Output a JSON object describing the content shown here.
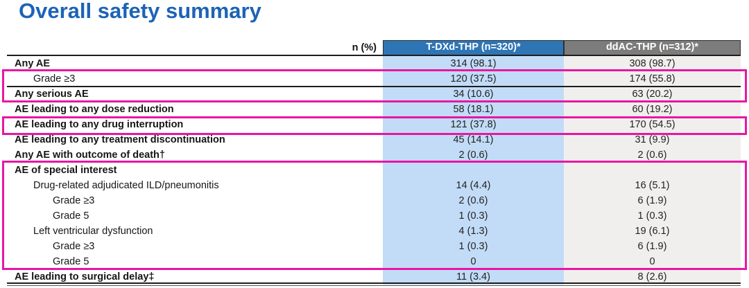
{
  "title": "Overall safety summary",
  "table": {
    "unit_label": "n (%)",
    "columns": [
      {
        "id": "tdxd",
        "label": "T-DXd-THP (n=320)*"
      },
      {
        "id": "ddac",
        "label": "ddAC-THP (n=312)*"
      }
    ],
    "rows": [
      {
        "label": "Any AE",
        "indent": 0,
        "bold": true,
        "values": [
          "314 (98.1)",
          "308 (98.7)"
        ]
      },
      {
        "label": "Grade ≥3",
        "indent": 1,
        "bold": false,
        "values": [
          "120 (37.5)",
          "174 (55.8)"
        ]
      },
      {
        "label": "Any serious AE",
        "indent": 0,
        "bold": true,
        "values": [
          "34 (10.6)",
          "63 (20.2)"
        ]
      },
      {
        "label": "AE leading to any dose reduction",
        "indent": 0,
        "bold": true,
        "values": [
          "58 (18.1)",
          "60 (19.2)"
        ]
      },
      {
        "label": "AE leading to any drug interruption",
        "indent": 0,
        "bold": true,
        "values": [
          "121 (37.8)",
          "170 (54.5)"
        ]
      },
      {
        "label": "AE leading to any treatment discontinuation",
        "indent": 0,
        "bold": true,
        "values": [
          "45 (14.1)",
          "31 (9.9)"
        ]
      },
      {
        "label": "Any AE with outcome of death†",
        "indent": 0,
        "bold": true,
        "values": [
          "2 (0.6)",
          "2 (0.6)"
        ]
      },
      {
        "label": "AE of special interest",
        "indent": 0,
        "bold": true,
        "values": [
          "",
          ""
        ]
      },
      {
        "label": "Drug-related adjudicated ILD/pneumonitis",
        "indent": 1,
        "bold": false,
        "values": [
          "14 (4.4)",
          "16 (5.1)"
        ]
      },
      {
        "label": "Grade ≥3",
        "indent": 2,
        "bold": false,
        "values": [
          "2 (0.6)",
          "6 (1.9)"
        ]
      },
      {
        "label": "Grade 5",
        "indent": 2,
        "bold": false,
        "values": [
          "1 (0.3)",
          "1 (0.3)"
        ]
      },
      {
        "label": "Left ventricular dysfunction",
        "indent": 1,
        "bold": false,
        "values": [
          "4 (1.3)",
          "19 (6.1)"
        ]
      },
      {
        "label": "Grade ≥3",
        "indent": 2,
        "bold": false,
        "values": [
          "1 (0.3)",
          "6 (1.9)"
        ]
      },
      {
        "label": "Grade 5",
        "indent": 2,
        "bold": false,
        "values": [
          "0",
          "0"
        ]
      },
      {
        "label": "AE leading to surgical delay‡",
        "indent": 0,
        "bold": true,
        "values": [
          "11 (3.4)",
          "8 (2.6)"
        ]
      }
    ]
  },
  "highlights": [
    {
      "name": "grade3-and-serious-ae",
      "covers": "Grade ≥3 / Any serious AE"
    },
    {
      "name": "drug-interruption",
      "covers": "AE leading to any drug interruption"
    },
    {
      "name": "ae-of-special-interest",
      "covers": "AE of special interest through Grade 5"
    }
  ],
  "colors": {
    "title": "#1c63b7",
    "header_tdxd_bg": "#2e75b6",
    "header_ddac_bg": "#7c7c7c",
    "column_tdxd_bg": "#c2dcf7",
    "column_ddac_bg": "#f1efee",
    "highlight": "#e816a3",
    "header_text": "#ffffff"
  }
}
